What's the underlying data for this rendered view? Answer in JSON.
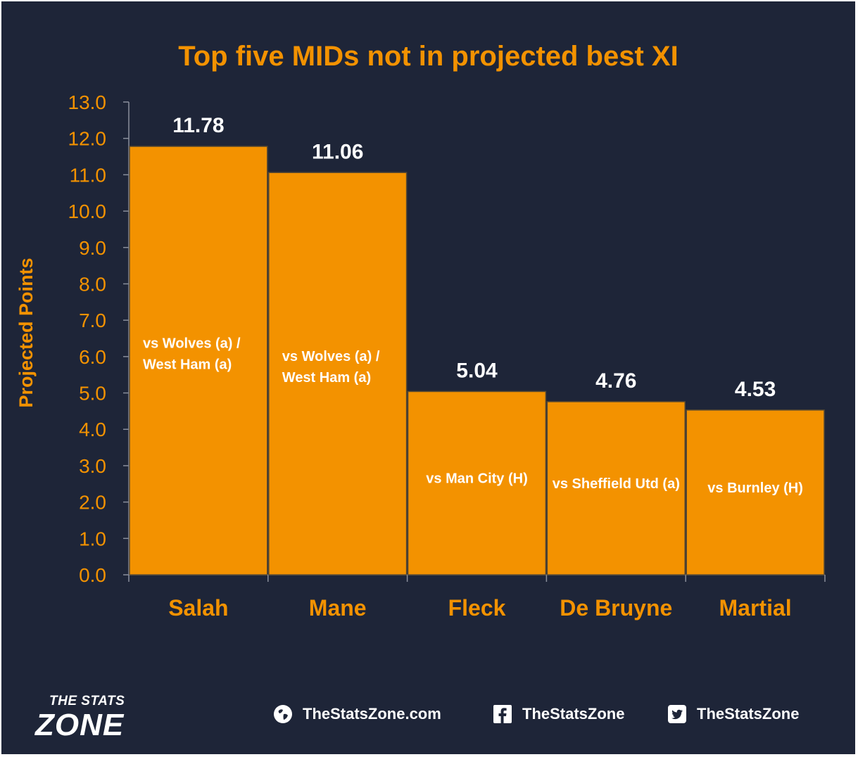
{
  "chart_data": {
    "type": "bar",
    "title": "Top five MIDs not in projected best XI",
    "xlabel": "",
    "ylabel": "Projected Points",
    "ylim": [
      0,
      13
    ],
    "yticks": [
      "0.0",
      "1.0",
      "2.0",
      "3.0",
      "4.0",
      "5.0",
      "6.0",
      "7.0",
      "8.0",
      "9.0",
      "10.0",
      "11.0",
      "12.0",
      "13.0"
    ],
    "categories": [
      "Salah",
      "Mane",
      "Fleck",
      "De Bruyne",
      "Martial"
    ],
    "values": [
      11.78,
      11.06,
      5.04,
      4.76,
      4.53
    ],
    "value_labels": [
      "11.78",
      "11.06",
      "5.04",
      "4.76",
      "4.53"
    ],
    "fixtures": [
      [
        "vs Wolves (a) /",
        "West Ham (a)"
      ],
      [
        "vs Wolves (a) /",
        "West Ham (a)"
      ],
      [
        "vs Man City (H)"
      ],
      [
        "vs Sheffield Utd (a)"
      ],
      [
        "vs Burnley (H)"
      ]
    ],
    "grid": false,
    "legend": "none"
  },
  "colors": {
    "background": "#1e2538",
    "bar": "#f39200",
    "bar_edge": "#5a4a30",
    "accent": "#f39200",
    "text": "#ffffff"
  },
  "footer": {
    "logo_top": "THE STATS",
    "logo_main": "ZONE",
    "website": "TheStatsZone.com",
    "facebook": "TheStatsZone",
    "twitter": "TheStatsZone",
    "icons": [
      "globe-icon",
      "facebook-icon",
      "twitter-icon"
    ]
  }
}
